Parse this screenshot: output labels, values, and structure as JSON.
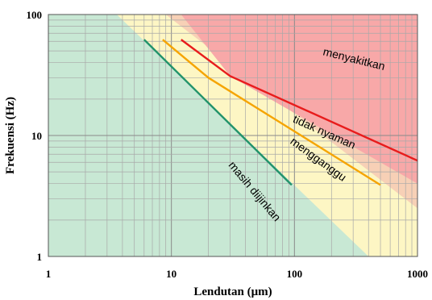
{
  "chart_data": {
    "type": "line",
    "xlabel": "Lendutan (μm)",
    "ylabel": "Frekuensi (Hz)",
    "x_scale": "log",
    "y_scale": "log",
    "xlim": [
      1,
      1000
    ],
    "ylim": [
      1,
      100
    ],
    "grid": true,
    "x_ticks": [
      {
        "value": 1,
        "label": "1"
      },
      {
        "value": 10,
        "label": "10"
      },
      {
        "value": 100,
        "label": "100"
      },
      {
        "value": 1000,
        "label": "1000"
      }
    ],
    "y_ticks": [
      {
        "value": 1,
        "label": "1"
      },
      {
        "value": 10,
        "label": "10"
      },
      {
        "value": 100,
        "label": "100"
      }
    ],
    "zones": [
      {
        "label": "masih diijinkan",
        "color": "#c8e8d4",
        "boundary": [
          [
            3.6,
            100
          ],
          [
            400,
            1
          ]
        ]
      },
      {
        "label": "mengganggu",
        "color": "#fdf6c4",
        "boundary": [
          [
            9,
            100
          ],
          [
            1000,
            2.5
          ]
        ]
      },
      {
        "label": "tidak nyaman",
        "color": "#f7d0b6",
        "boundary": [
          [
            12,
            100
          ],
          [
            30,
            31
          ],
          [
            1000,
            4
          ]
        ]
      },
      {
        "label": "menyakitkan",
        "color": "#f8a8a8",
        "boundary": [
          [
            12,
            100
          ],
          [
            30,
            31
          ],
          [
            1000,
            4
          ]
        ]
      }
    ],
    "series": [
      {
        "color": "#21936b",
        "x": [
          6,
          95
        ],
        "y": [
          62,
          3.9
        ]
      },
      {
        "color": "#f5a400",
        "x": [
          8.5,
          20,
          500
        ],
        "y": [
          62,
          30,
          3.9
        ]
      },
      {
        "color": "#e81c1c",
        "x": [
          12,
          30,
          1000
        ],
        "y": [
          62,
          31,
          6.2
        ]
      }
    ],
    "annotations": [
      {
        "text": "menyakitkan",
        "x": 300,
        "y": 40,
        "angle": 14
      },
      {
        "text": "tidak nyaman",
        "x": 170,
        "y": 10,
        "angle": 24
      },
      {
        "text": "mengganggu",
        "x": 150,
        "y": 6,
        "angle": 36
      },
      {
        "text": "masih diijinkan",
        "x": 45,
        "y": 3.3,
        "angle": 50
      }
    ]
  }
}
